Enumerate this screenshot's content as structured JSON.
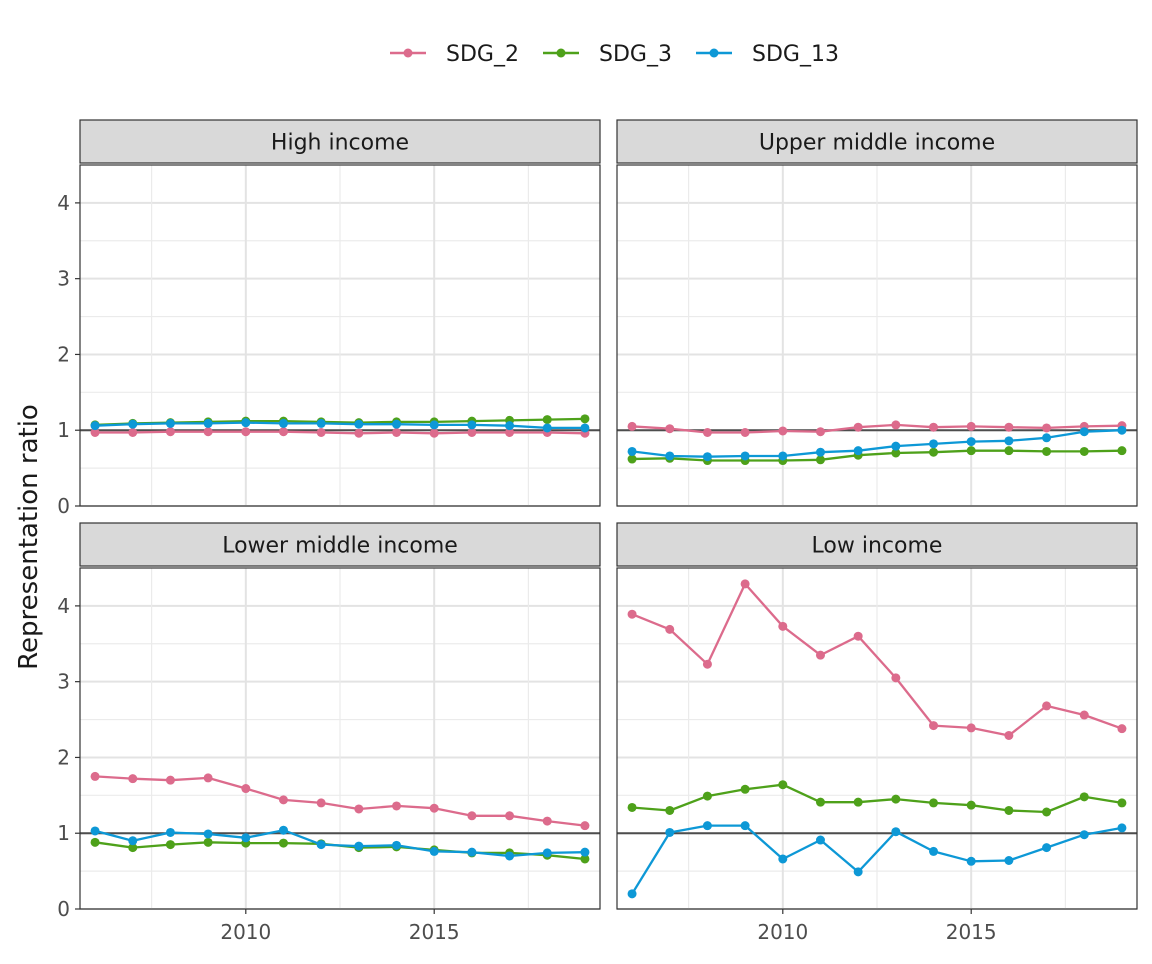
{
  "chart_data": {
    "type": "line",
    "ylabel": "Representation ratio",
    "xlabel": "",
    "xlim": [
      2005.6,
      2019.4
    ],
    "ylim": [
      0,
      4.5
    ],
    "x_ticks": [
      2010,
      2015
    ],
    "y_ticks": [
      0,
      1,
      2,
      3,
      4
    ],
    "reference_line": 1,
    "grid": true,
    "legend_position": "top",
    "series_colors": {
      "SDG_2": "#dc6b8c",
      "SDG_3": "#4ea11a",
      "SDG_13": "#0d98d6"
    },
    "x": [
      2006,
      2007,
      2008,
      2009,
      2010,
      2011,
      2012,
      2013,
      2014,
      2015,
      2016,
      2017,
      2018,
      2019
    ],
    "panels": [
      {
        "title": "High income",
        "series": [
          {
            "name": "SDG_2",
            "values": [
              0.97,
              0.97,
              0.98,
              0.98,
              0.98,
              0.98,
              0.97,
              0.96,
              0.97,
              0.96,
              0.97,
              0.97,
              0.97,
              0.96
            ]
          },
          {
            "name": "SDG_3",
            "values": [
              1.07,
              1.09,
              1.1,
              1.11,
              1.12,
              1.12,
              1.11,
              1.1,
              1.11,
              1.11,
              1.12,
              1.13,
              1.14,
              1.15
            ]
          },
          {
            "name": "SDG_13",
            "values": [
              1.06,
              1.08,
              1.09,
              1.09,
              1.1,
              1.09,
              1.09,
              1.08,
              1.08,
              1.07,
              1.07,
              1.06,
              1.03,
              1.03
            ]
          }
        ]
      },
      {
        "title": "Upper middle income",
        "series": [
          {
            "name": "SDG_2",
            "values": [
              1.05,
              1.02,
              0.97,
              0.97,
              0.99,
              0.98,
              1.04,
              1.07,
              1.04,
              1.05,
              1.04,
              1.03,
              1.05,
              1.06
            ]
          },
          {
            "name": "SDG_3",
            "values": [
              0.62,
              0.63,
              0.6,
              0.6,
              0.6,
              0.61,
              0.67,
              0.7,
              0.71,
              0.73,
              0.73,
              0.72,
              0.72,
              0.73
            ]
          },
          {
            "name": "SDG_13",
            "values": [
              0.72,
              0.66,
              0.65,
              0.66,
              0.66,
              0.71,
              0.73,
              0.79,
              0.82,
              0.85,
              0.86,
              0.9,
              0.98,
              1.0
            ]
          }
        ]
      },
      {
        "title": "Lower middle income",
        "series": [
          {
            "name": "SDG_2",
            "values": [
              1.75,
              1.72,
              1.7,
              1.73,
              1.59,
              1.44,
              1.4,
              1.32,
              1.36,
              1.33,
              1.23,
              1.23,
              1.16,
              1.1
            ]
          },
          {
            "name": "SDG_3",
            "values": [
              0.88,
              0.81,
              0.85,
              0.88,
              0.87,
              0.87,
              0.86,
              0.81,
              0.82,
              0.78,
              0.74,
              0.74,
              0.71,
              0.66
            ]
          },
          {
            "name": "SDG_13",
            "values": [
              1.03,
              0.9,
              1.01,
              0.99,
              0.94,
              1.04,
              0.85,
              0.83,
              0.84,
              0.76,
              0.75,
              0.7,
              0.74,
              0.75
            ]
          }
        ]
      },
      {
        "title": "Low income",
        "series": [
          {
            "name": "SDG_2",
            "values": [
              3.89,
              3.69,
              3.23,
              4.29,
              3.73,
              3.35,
              3.6,
              3.05,
              2.42,
              2.39,
              2.29,
              2.68,
              2.56,
              2.38
            ]
          },
          {
            "name": "SDG_3",
            "values": [
              1.34,
              1.3,
              1.49,
              1.58,
              1.64,
              1.41,
              1.41,
              1.45,
              1.4,
              1.37,
              1.3,
              1.28,
              1.48,
              1.4
            ]
          },
          {
            "name": "SDG_13",
            "values": [
              0.2,
              1.01,
              1.1,
              1.1,
              0.66,
              0.91,
              0.49,
              1.02,
              0.76,
              0.63,
              0.64,
              0.81,
              0.98,
              1.07
            ]
          }
        ]
      }
    ]
  }
}
